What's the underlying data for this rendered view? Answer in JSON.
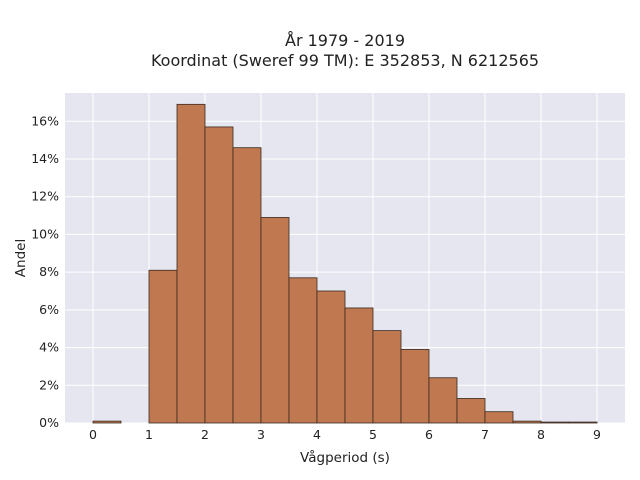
{
  "chart_data": {
    "type": "bar",
    "title": "År 1979 - 2019",
    "subtitle": "Koordinat (Sweref 99 TM): E 352853, N 6212565",
    "xlabel": "Vågperiod (s)",
    "ylabel": "Andel",
    "xlim": [
      -0.5,
      9.5
    ],
    "ylim": [
      0,
      17.5
    ],
    "xticks": [
      0,
      1,
      2,
      3,
      4,
      5,
      6,
      7,
      8,
      9
    ],
    "xtick_labels": [
      "0",
      "1",
      "2",
      "3",
      "4",
      "5",
      "6",
      "7",
      "8",
      "9"
    ],
    "yticks": [
      0,
      2,
      4,
      6,
      8,
      10,
      12,
      14,
      16
    ],
    "ytick_labels": [
      "0%",
      "2%",
      "4%",
      "6%",
      "8%",
      "10%",
      "12%",
      "14%",
      "16%"
    ],
    "bin_width": 0.5,
    "bins": [
      {
        "start": 0.0,
        "value": 0.1
      },
      {
        "start": 0.5,
        "value": 0.0
      },
      {
        "start": 1.0,
        "value": 8.1
      },
      {
        "start": 1.5,
        "value": 16.9
      },
      {
        "start": 2.0,
        "value": 15.7
      },
      {
        "start": 2.5,
        "value": 14.6
      },
      {
        "start": 3.0,
        "value": 10.9
      },
      {
        "start": 3.5,
        "value": 7.7
      },
      {
        "start": 4.0,
        "value": 7.0
      },
      {
        "start": 4.5,
        "value": 6.1
      },
      {
        "start": 5.0,
        "value": 4.9
      },
      {
        "start": 5.5,
        "value": 3.9
      },
      {
        "start": 6.0,
        "value": 2.4
      },
      {
        "start": 6.5,
        "value": 1.3
      },
      {
        "start": 7.0,
        "value": 0.6
      },
      {
        "start": 7.5,
        "value": 0.1
      },
      {
        "start": 8.0,
        "value": 0.05
      },
      {
        "start": 8.5,
        "value": 0.05
      }
    ],
    "grid": true,
    "colors": {
      "bar": "#c07850",
      "bar_edge": "#3a2a20",
      "plot_bg": "#e5e6ef",
      "grid": "#ffffff"
    }
  }
}
